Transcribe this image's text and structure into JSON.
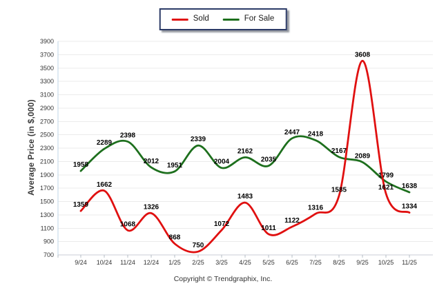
{
  "legend": {
    "items": [
      {
        "label": "Sold",
        "color": "#e01010"
      },
      {
        "label": "For Sale",
        "color": "#1d6f1d"
      }
    ]
  },
  "y_axis_title": "Average Price (in $,000)",
  "footer": "Copyright © Trendgraphix, Inc.",
  "chart_data": {
    "type": "line",
    "title": "",
    "categories": [
      "9/24",
      "10/24",
      "11/24",
      "12/24",
      "1/25",
      "2/25",
      "3/25",
      "4/25",
      "5/25",
      "6/25",
      "7/25",
      "8/25",
      "9/25",
      "10/25",
      "11/25"
    ],
    "series": [
      {
        "name": "Sold",
        "color": "#e01010",
        "values": [
          1359,
          1662,
          1068,
          1326,
          868,
          750,
          1072,
          1483,
          1011,
          1122,
          1316,
          1585,
          3608,
          1621,
          1334
        ]
      },
      {
        "name": "For Sale",
        "color": "#1d6f1d",
        "values": [
          1958,
          2289,
          2398,
          2012,
          1951,
          2339,
          2004,
          2162,
          2035,
          2447,
          2418,
          2167,
          2089,
          1799,
          1638
        ]
      }
    ],
    "xlabel": "",
    "ylabel": "Average Price (in $,000)",
    "ylim": [
      700,
      3900
    ],
    "ytick_step": 200,
    "grid": "horizontal",
    "legend_position": "top-center",
    "data_labels": true,
    "curve": "smooth"
  }
}
